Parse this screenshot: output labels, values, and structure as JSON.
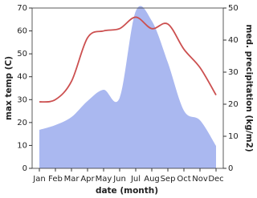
{
  "chart_data": {
    "type": "line",
    "x_label": "date (month)",
    "y_label": "max temp (C)",
    "y2_label": "med. precipitation (kg/m2)",
    "categories": [
      "Jan",
      "Feb",
      "Mar",
      "Apr",
      "May",
      "Jun",
      "Jul",
      "Aug",
      "Sep",
      "Oct",
      "Nov",
      "Dec"
    ],
    "ylim": [
      0,
      70
    ],
    "yticks": [
      0,
      10,
      20,
      30,
      40,
      50,
      60,
      70
    ],
    "y2lim": [
      0,
      50
    ],
    "y2ticks": [
      0,
      10,
      20,
      30,
      40,
      50
    ],
    "series": [
      {
        "name": "med. precipitation (kg/m2)",
        "type": "area",
        "axis": "y2",
        "color": "#aab8f0",
        "values": [
          12,
          13.5,
          16,
          21,
          24.5,
          22,
          49,
          46,
          33,
          18,
          15,
          7
        ]
      },
      {
        "name": "max temp (C)",
        "type": "line",
        "color": "#cc5050",
        "values": [
          29,
          30,
          38,
          57,
          60,
          61,
          66,
          61,
          63,
          52,
          44,
          32
        ]
      }
    ]
  }
}
